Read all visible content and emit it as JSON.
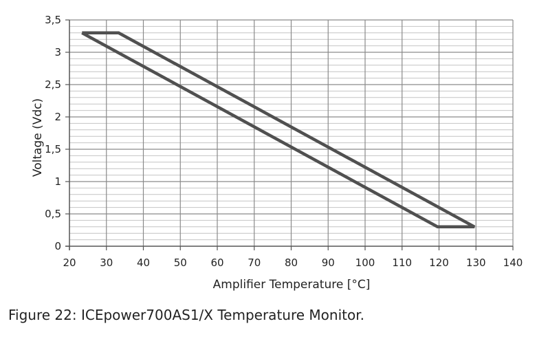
{
  "chart_data": {
    "type": "line",
    "xlabel": "Amplifier Temperature [°C]",
    "ylabel": "Voltage (Vdc)",
    "xlim": [
      20,
      140
    ],
    "ylim": [
      0,
      3.5
    ],
    "x_ticks": [
      "20",
      "30",
      "40",
      "50",
      "60",
      "70",
      "80",
      "90",
      "100",
      "110",
      "120",
      "130",
      "140"
    ],
    "y_ticks": [
      "0",
      "0,5",
      "1",
      "1,5",
      "2",
      "2,5",
      "3",
      "3,5"
    ],
    "grid": "on (major every 10 °C / 0.5 V, minor every 0.1 V)",
    "line_color": "#505050",
    "series": [
      {
        "points": [
          {
            "x": 23.4,
            "y": 3.3
          },
          {
            "x": 33.3,
            "y": 3.3
          },
          {
            "x": 129.6,
            "y": 0.3
          },
          {
            "x": 119.6,
            "y": 0.3
          },
          {
            "x": 23.4,
            "y": 3.3
          }
        ]
      }
    ]
  },
  "caption": "Figure 22: ICEpower700AS1/X Temperature Monitor."
}
